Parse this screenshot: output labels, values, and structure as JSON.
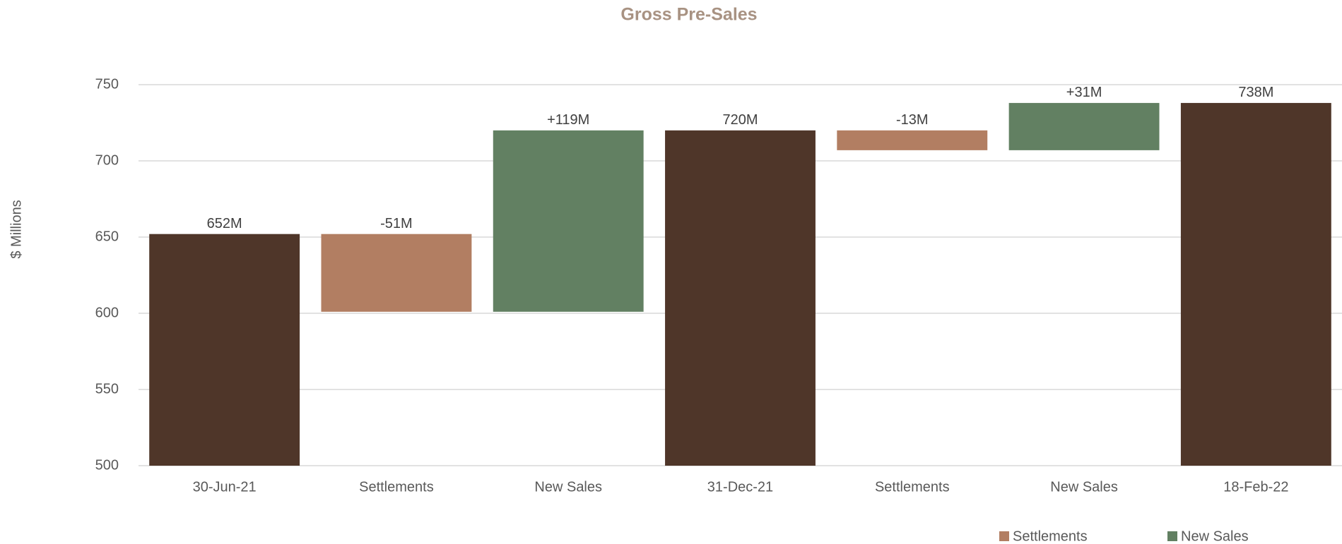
{
  "chart_data": {
    "type": "waterfall",
    "title": "Gross Pre-Sales",
    "y_label": "$ Millions",
    "categories": [
      "30-Jun-21",
      "Settlements",
      "New Sales",
      "31-Dec-21",
      "Settlements",
      "New Sales",
      "18-Feb-22"
    ],
    "measure": [
      "total",
      "relative",
      "relative",
      "total",
      "relative",
      "relative",
      "total"
    ],
    "values": [
      652,
      -51,
      119,
      720,
      -13,
      31,
      738
    ],
    "value_labels": [
      "652M",
      "-51M",
      "+119M",
      "720M",
      "-13M",
      "+31M",
      "738M"
    ],
    "colors": [
      "#4f3629",
      "#b27e62",
      "#628062",
      "#4f3629",
      "#b27e62",
      "#628062",
      "#4f3629"
    ],
    "legend": [
      {
        "name": "Settlements",
        "color": "#b27e62"
      },
      {
        "name": "New Sales",
        "color": "#628062"
      }
    ],
    "ylim": [
      500,
      750
    ],
    "yticks": [
      500,
      550,
      600,
      650,
      700,
      750
    ],
    "grid": true
  }
}
